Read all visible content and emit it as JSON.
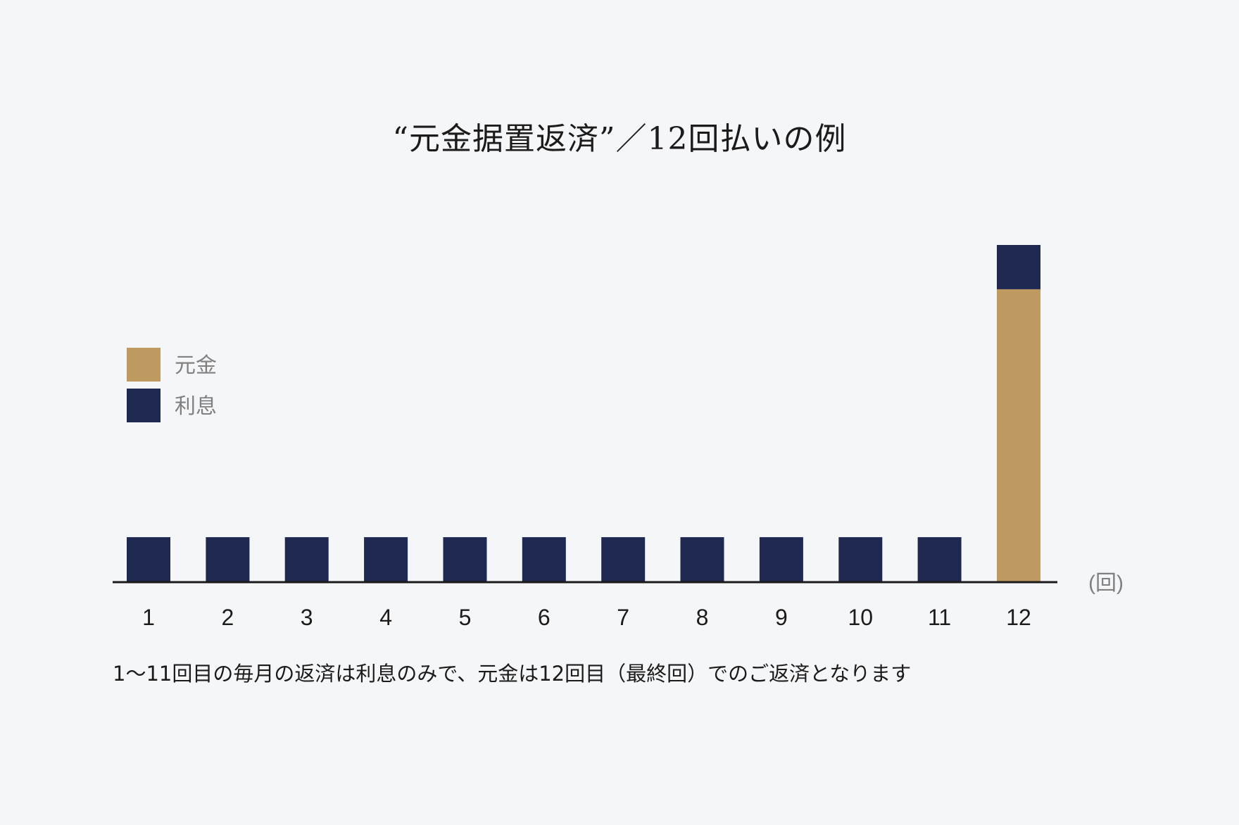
{
  "chart_data": {
    "type": "bar",
    "stacked": true,
    "title": "“元金据置返済”／12回払いの例",
    "categories": [
      "1",
      "2",
      "3",
      "4",
      "5",
      "6",
      "7",
      "8",
      "9",
      "10",
      "11",
      "12"
    ],
    "series": [
      {
        "name": "利息",
        "color": "#1e2851",
        "values": [
          1,
          1,
          1,
          1,
          1,
          1,
          1,
          1,
          1,
          1,
          1,
          1
        ]
      },
      {
        "name": "元金",
        "color": "#be9a60",
        "values": [
          0,
          0,
          0,
          0,
          0,
          0,
          0,
          0,
          0,
          0,
          0,
          6.6
        ]
      }
    ],
    "legend": {
      "placement": "left",
      "order": [
        "元金",
        "利息"
      ]
    },
    "xlabel": "(回)",
    "ylim": [
      0,
      7.6
    ],
    "y_axis_visible": false,
    "grid": false
  },
  "footnote": "1〜11回目の毎月の返済は利息のみで、元金は12回目（最終回）でのご返済となります",
  "colors": {
    "background": "#f5f6f8",
    "axis": "#1b1b1b",
    "text": "#1b1b1b",
    "muted_text": "#808080"
  }
}
